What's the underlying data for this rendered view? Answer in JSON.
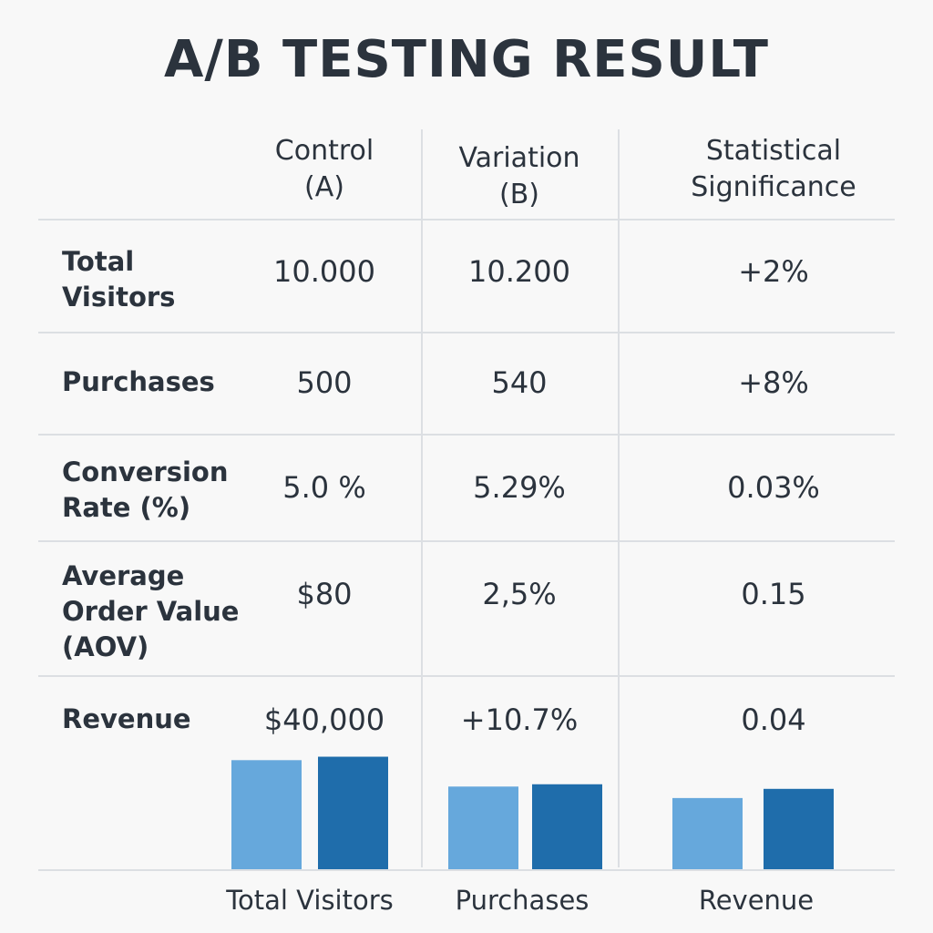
{
  "title": "A/B TESTING RESULT",
  "table": {
    "headers": [
      "",
      "Control\n(A)",
      "Variation\n(B)",
      "Statistical\nSignificance"
    ],
    "rows": [
      {
        "label": "Total\nVisitors",
        "control": "10.000",
        "variation": "10.200",
        "significance": "+2%"
      },
      {
        "label": "Purchases",
        "control": "500",
        "variation": "540",
        "significance": "+8%"
      },
      {
        "label": "Conversion\nRate (%)",
        "control": "5.0 %",
        "variation": "5.29%",
        "significance": "0.03%"
      },
      {
        "label": "Average\nOrder Value\n(AOV)",
        "control": "$80",
        "variation": "2,5%",
        "significance": "0.15"
      },
      {
        "label": "Revenue",
        "control": "$40,000",
        "variation": "+10.7%",
        "significance": "0.04"
      }
    ]
  },
  "colors": {
    "control": "#66a8dc",
    "variation": "#1f6dab",
    "grid": "#dcdfe3",
    "text": "#2b333d",
    "background": "#f8f8f8"
  },
  "chart_data": {
    "type": "bar",
    "categories": [
      "Total Visitors",
      "Purchases",
      "Revenue"
    ],
    "series": [
      {
        "values": [
          95,
          72,
          62
        ]
      },
      {
        "values": [
          98,
          74,
          70
        ]
      }
    ],
    "ylim": [
      0,
      100
    ],
    "grid": false,
    "legend": "none"
  }
}
